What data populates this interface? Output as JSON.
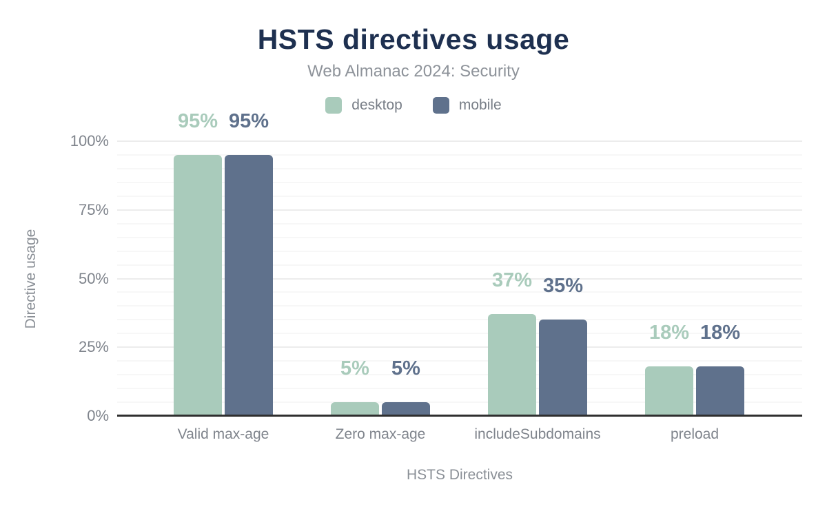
{
  "header": {
    "title": "HSTS directives usage",
    "subtitle": "Web Almanac 2024: Security"
  },
  "chart_data": {
    "type": "bar",
    "title": "HSTS directives usage",
    "subtitle": "Web Almanac 2024: Security",
    "categories": [
      "Valid max-age",
      "Zero max-age",
      "includeSubdomains",
      "preload"
    ],
    "series": [
      {
        "name": "desktop",
        "color": "#a9cbbb",
        "values": [
          95,
          5,
          37,
          18
        ],
        "labels": [
          "95%",
          "5%",
          "37%",
          "18%"
        ]
      },
      {
        "name": "mobile",
        "color": "#5f718c",
        "values": [
          95,
          5,
          35,
          18
        ],
        "labels": [
          "95%",
          "5%",
          "35%",
          "18%"
        ]
      }
    ],
    "xlabel": "HSTS Directives",
    "ylabel": "Directive usage",
    "ylim": [
      0,
      100
    ],
    "y_ticks": [
      0,
      25,
      50,
      75,
      100
    ],
    "y_tick_format": "{value}%",
    "minor_grid_step": 5,
    "major_grid_step": 25,
    "grid": true,
    "legend_position": "top"
  },
  "colors": {
    "title": "#1e3050",
    "subtitle": "#8e939a",
    "axis_text": "#7f848c",
    "axis_line": "#2f2f2f",
    "grid_minor": "#f7f7f7",
    "grid_major": "#ececec",
    "background": "#ffffff"
  }
}
